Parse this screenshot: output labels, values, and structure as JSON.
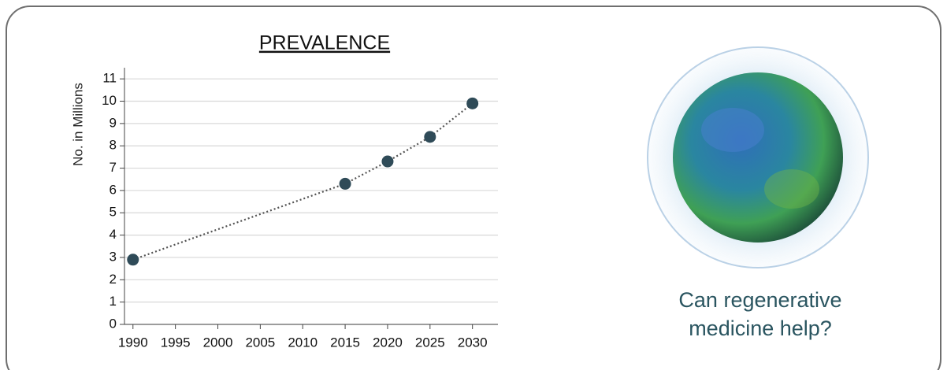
{
  "chart_data": {
    "type": "line",
    "title": "PREVALENCE",
    "y_label": "No. in Millions",
    "x": [
      1990,
      2015,
      2020,
      2025,
      2030
    ],
    "values": [
      2.9,
      6.3,
      7.3,
      8.4,
      9.9
    ],
    "color": "#2f4b58",
    "line_style": "dotted",
    "markers": true,
    "xlim": [
      1989,
      2033
    ],
    "xticks": [
      1990,
      1995,
      2000,
      2005,
      2010,
      2015,
      2020,
      2025,
      2030
    ],
    "ylim": [
      0,
      11.5
    ],
    "yticks": [
      0,
      1,
      2,
      3,
      4,
      5,
      6,
      7,
      8,
      9,
      10,
      11
    ],
    "grid": true
  },
  "caption": [
    "Can regenerative",
    "medicine help?"
  ]
}
